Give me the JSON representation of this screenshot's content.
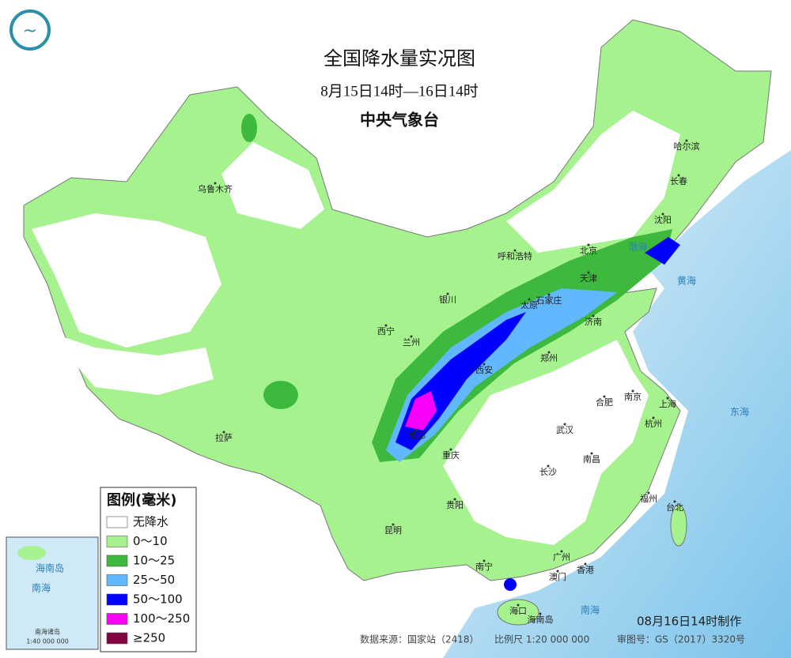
{
  "header": {
    "title": "全国降水量实况图",
    "period": "8月15日14时—16日14时",
    "agency": "中央气象台"
  },
  "legend": {
    "title": "图例(毫米)",
    "items": [
      {
        "label": "无降水",
        "color": "#ffffff"
      },
      {
        "label": "0～10",
        "color": "#a6f28f"
      },
      {
        "label": "10～25",
        "color": "#3dba3d"
      },
      {
        "label": "25～50",
        "color": "#61b8ff"
      },
      {
        "label": "50～100",
        "color": "#0000ff"
      },
      {
        "label": "100～250",
        "color": "#fa00fa"
      },
      {
        "label": "≥250",
        "color": "#800040"
      }
    ]
  },
  "cities": [
    "乌鲁木齐",
    "哈尔滨",
    "长春",
    "沈阳",
    "呼和浩特",
    "北京",
    "天津",
    "石家庄",
    "太原",
    "济南",
    "银川",
    "西宁",
    "兰州",
    "西安",
    "郑州",
    "南京",
    "合肥",
    "上海",
    "杭州",
    "武汉",
    "成都",
    "重庆",
    "长沙",
    "南昌",
    "福州",
    "台北",
    "贵阳",
    "昆明",
    "拉萨",
    "南宁",
    "广州",
    "香港",
    "澳门",
    "海口",
    "海南岛"
  ],
  "seas": [
    "渤海",
    "黄海",
    "东海",
    "南海"
  ],
  "inset": {
    "sea": "南海",
    "island": "海南岛",
    "islands": "南海诸岛",
    "scale": "1:40 000 000"
  },
  "footer": {
    "made": "08月16日14时制作",
    "source": "数据来源：国家站（2418）",
    "scale": "比例尺 1:20 000 000",
    "approval": "审图号：GS（2017）3320号"
  }
}
